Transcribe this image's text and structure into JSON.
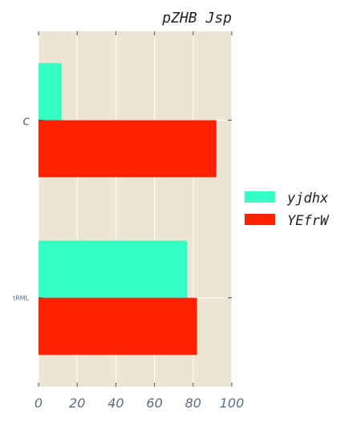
{
  "chart_data": {
    "type": "bar",
    "orientation": "horizontal",
    "title": "pZHB Jsp",
    "categories": [
      "c",
      "tRML"
    ],
    "series": [
      {
        "name": "yjdhx",
        "values": [
          12,
          77
        ]
      },
      {
        "name": "YEfrW",
        "values": [
          92,
          82
        ]
      }
    ],
    "xlim": [
      0,
      100
    ],
    "x_ticks": [
      0,
      20,
      40,
      60,
      80,
      100
    ],
    "grid": true,
    "legend_position": "right",
    "colors": {
      "background": "#ede5d3",
      "grid": "#ffffff",
      "tick_labels": "#5a6f7d",
      "series": [
        "#33ffc4",
        "#ff2000"
      ]
    }
  }
}
